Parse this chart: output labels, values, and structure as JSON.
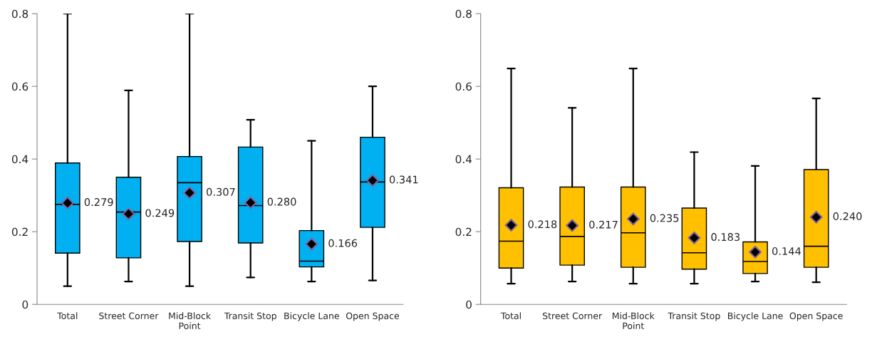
{
  "chart_data": [
    {
      "type": "box",
      "categories": [
        "Total",
        "Street Corner",
        "Mid-Block\nPoint",
        "Transit Stop",
        "Bicycle Lane",
        "Open Space"
      ],
      "color": "#00b0f0",
      "boxes": [
        {
          "low": 0.05,
          "q1": 0.141,
          "median": 0.275,
          "q3": 0.389,
          "high": 0.8,
          "mean": 0.279
        },
        {
          "low": 0.063,
          "q1": 0.128,
          "median": 0.254,
          "q3": 0.35,
          "high": 0.589,
          "mean": 0.249
        },
        {
          "low": 0.05,
          "q1": 0.173,
          "median": 0.335,
          "q3": 0.407,
          "high": 0.8,
          "mean": 0.307
        },
        {
          "low": 0.074,
          "q1": 0.169,
          "median": 0.272,
          "q3": 0.433,
          "high": 0.508,
          "mean": 0.28
        },
        {
          "low": 0.063,
          "q1": 0.103,
          "median": 0.119,
          "q3": 0.203,
          "high": 0.45,
          "mean": 0.166
        },
        {
          "low": 0.066,
          "q1": 0.212,
          "median": 0.337,
          "q3": 0.46,
          "high": 0.6,
          "mean": 0.341
        }
      ],
      "value_labels": [
        "0.279",
        "0.249",
        "0.307",
        "0.280",
        "0.166",
        "0.341"
      ],
      "ylim": [
        0,
        0.8
      ],
      "yticks": [
        {
          "value": 0,
          "label": "0"
        },
        0.2,
        0.4,
        0.6,
        0.8
      ],
      "grid": false,
      "marker": "diamond"
    },
    {
      "type": "box",
      "categories": [
        "Total",
        "Street Corner",
        "Mid-Block\nPoint",
        "Transit Stop",
        "Bicycle Lane",
        "Open Space"
      ],
      "color": "#ffc000",
      "boxes": [
        {
          "low": 0.057,
          "q1": 0.1,
          "median": 0.174,
          "q3": 0.321,
          "high": 0.649,
          "mean": 0.218
        },
        {
          "low": 0.063,
          "q1": 0.108,
          "median": 0.187,
          "q3": 0.323,
          "high": 0.541,
          "mean": 0.217
        },
        {
          "low": 0.057,
          "q1": 0.102,
          "median": 0.197,
          "q3": 0.323,
          "high": 0.649,
          "mean": 0.235
        },
        {
          "low": 0.057,
          "q1": 0.097,
          "median": 0.142,
          "q3": 0.265,
          "high": 0.419,
          "mean": 0.183
        },
        {
          "low": 0.063,
          "q1": 0.085,
          "median": 0.118,
          "q3": 0.172,
          "high": 0.381,
          "mean": 0.144
        },
        {
          "low": 0.061,
          "q1": 0.102,
          "median": 0.16,
          "q3": 0.371,
          "high": 0.567,
          "mean": 0.24
        }
      ],
      "value_labels": [
        "0.218",
        "0.217",
        "0.235",
        "0.183",
        "0.144",
        "0.240"
      ],
      "ylim": [
        0,
        0.8
      ],
      "yticks": [
        {
          "value": 0,
          "label": "0"
        },
        0.2,
        0.4,
        0.6,
        0.8
      ],
      "grid": false,
      "marker": "diamond"
    }
  ]
}
